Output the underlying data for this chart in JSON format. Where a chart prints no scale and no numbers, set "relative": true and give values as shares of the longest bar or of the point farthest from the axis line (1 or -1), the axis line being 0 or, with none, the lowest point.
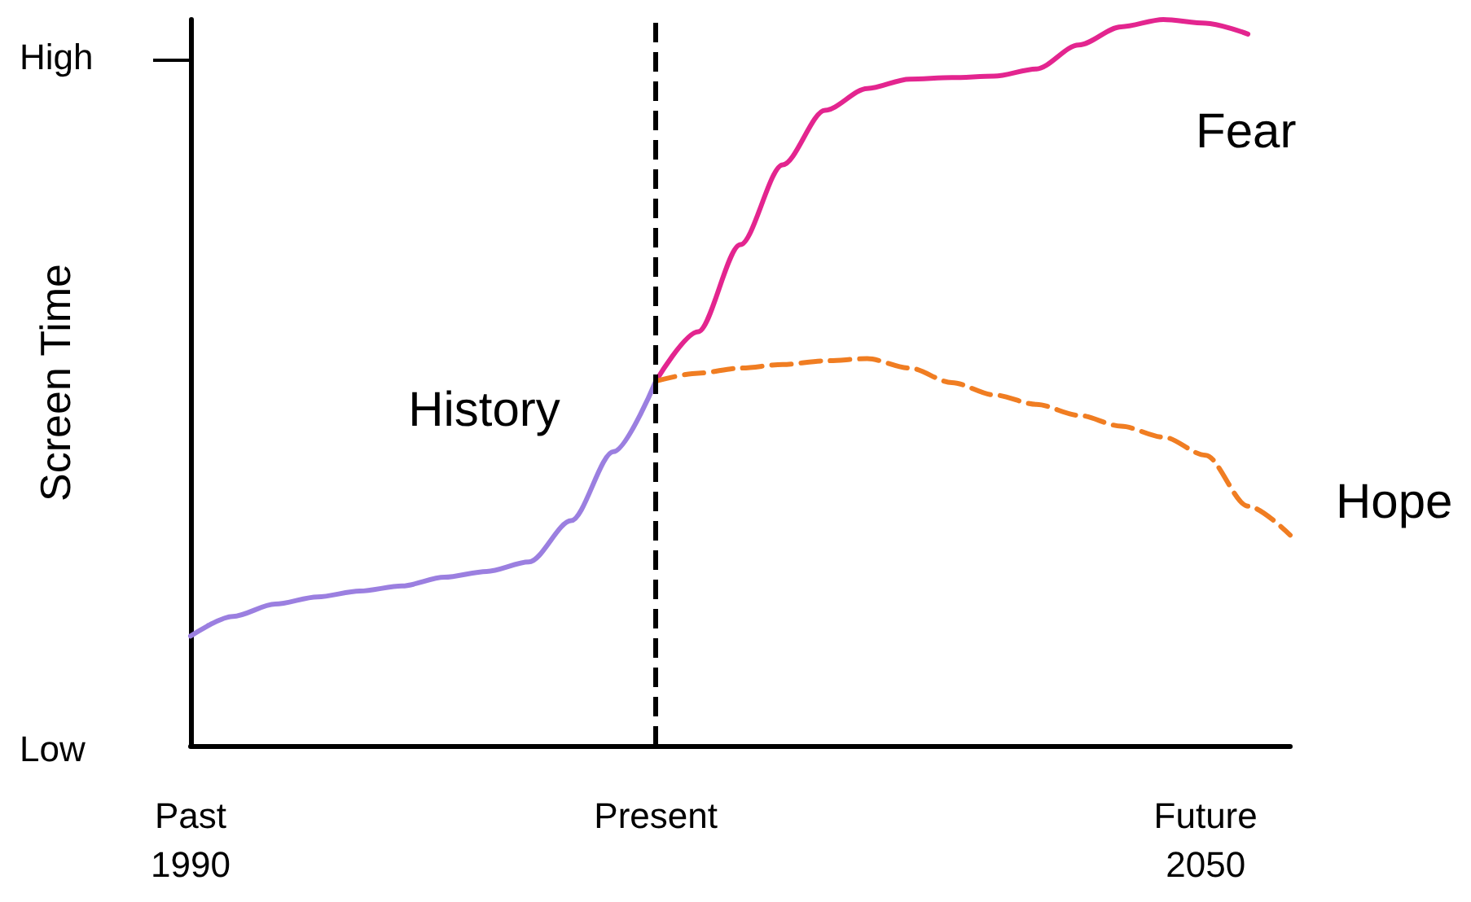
{
  "chart_data": {
    "type": "line",
    "relative": true,
    "ylabel": "Screen Time",
    "categories": [
      "Past\n1990",
      null,
      null,
      null,
      null,
      null,
      null,
      null,
      null,
      null,
      null,
      "Present",
      null,
      null,
      null,
      null,
      null,
      null,
      null,
      null,
      null,
      null,
      null,
      null,
      "Future\n2050",
      null,
      null
    ],
    "annotations": [
      "High",
      "Low"
    ],
    "series": [
      {
        "name": "History",
        "color": "#9b7fe0",
        "values": [
          0.151,
          0.178,
          0.195,
          0.205,
          0.213,
          0.22,
          0.232,
          0.24,
          0.253,
          0.31,
          0.405,
          0.502,
          null,
          null,
          null,
          null,
          null,
          null,
          null,
          null,
          null,
          null,
          null,
          null,
          null,
          null,
          null
        ]
      },
      {
        "name": "Fear",
        "color": "#e3258f",
        "values": [
          null,
          null,
          null,
          null,
          null,
          null,
          null,
          null,
          null,
          null,
          null,
          0.502,
          0.57,
          0.69,
          0.8,
          0.875,
          0.905,
          0.918,
          0.92,
          0.922,
          0.932,
          0.965,
          0.99,
          1.0,
          0.995,
          0.98,
          null
        ]
      },
      {
        "name": "Hope",
        "color": "#f07d22",
        "line_style": "dashed",
        "values": [
          null,
          null,
          null,
          null,
          null,
          null,
          null,
          null,
          null,
          null,
          null,
          0.502,
          0.513,
          0.52,
          0.525,
          0.53,
          0.533,
          0.52,
          0.5,
          0.483,
          0.47,
          0.455,
          0.44,
          0.425,
          0.4,
          0.33,
          0.29
        ]
      }
    ],
    "ref_lines": [
      {
        "axis": "x",
        "value": "Present",
        "color": "#000000",
        "line_style": "dashed"
      }
    ],
    "grid": false,
    "marker": "none",
    "legend": false
  }
}
